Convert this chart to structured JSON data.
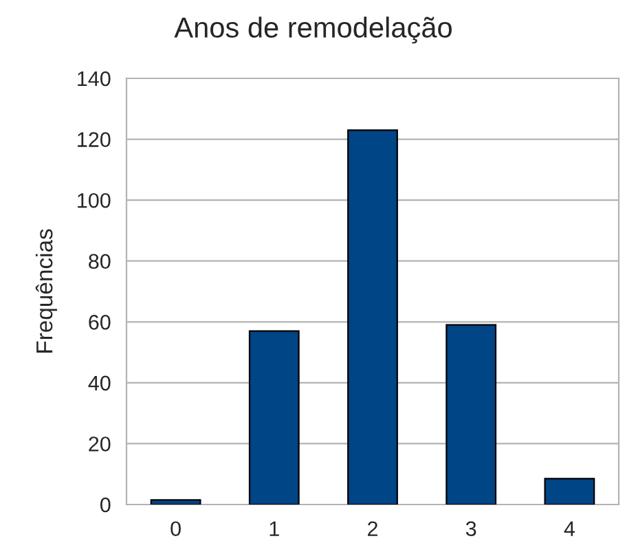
{
  "chart_data": {
    "type": "bar",
    "title": "Anos de remodelação",
    "ylabel": "Frequências",
    "categories": [
      "0",
      "1",
      "2",
      "3",
      "4"
    ],
    "values": [
      1.5,
      57,
      123,
      59,
      8.5
    ],
    "color": "#004586",
    "ylim": [
      0,
      140
    ],
    "yticks": [
      0,
      20,
      40,
      60,
      80,
      100,
      120,
      140
    ],
    "grid": "y",
    "legend": false
  }
}
